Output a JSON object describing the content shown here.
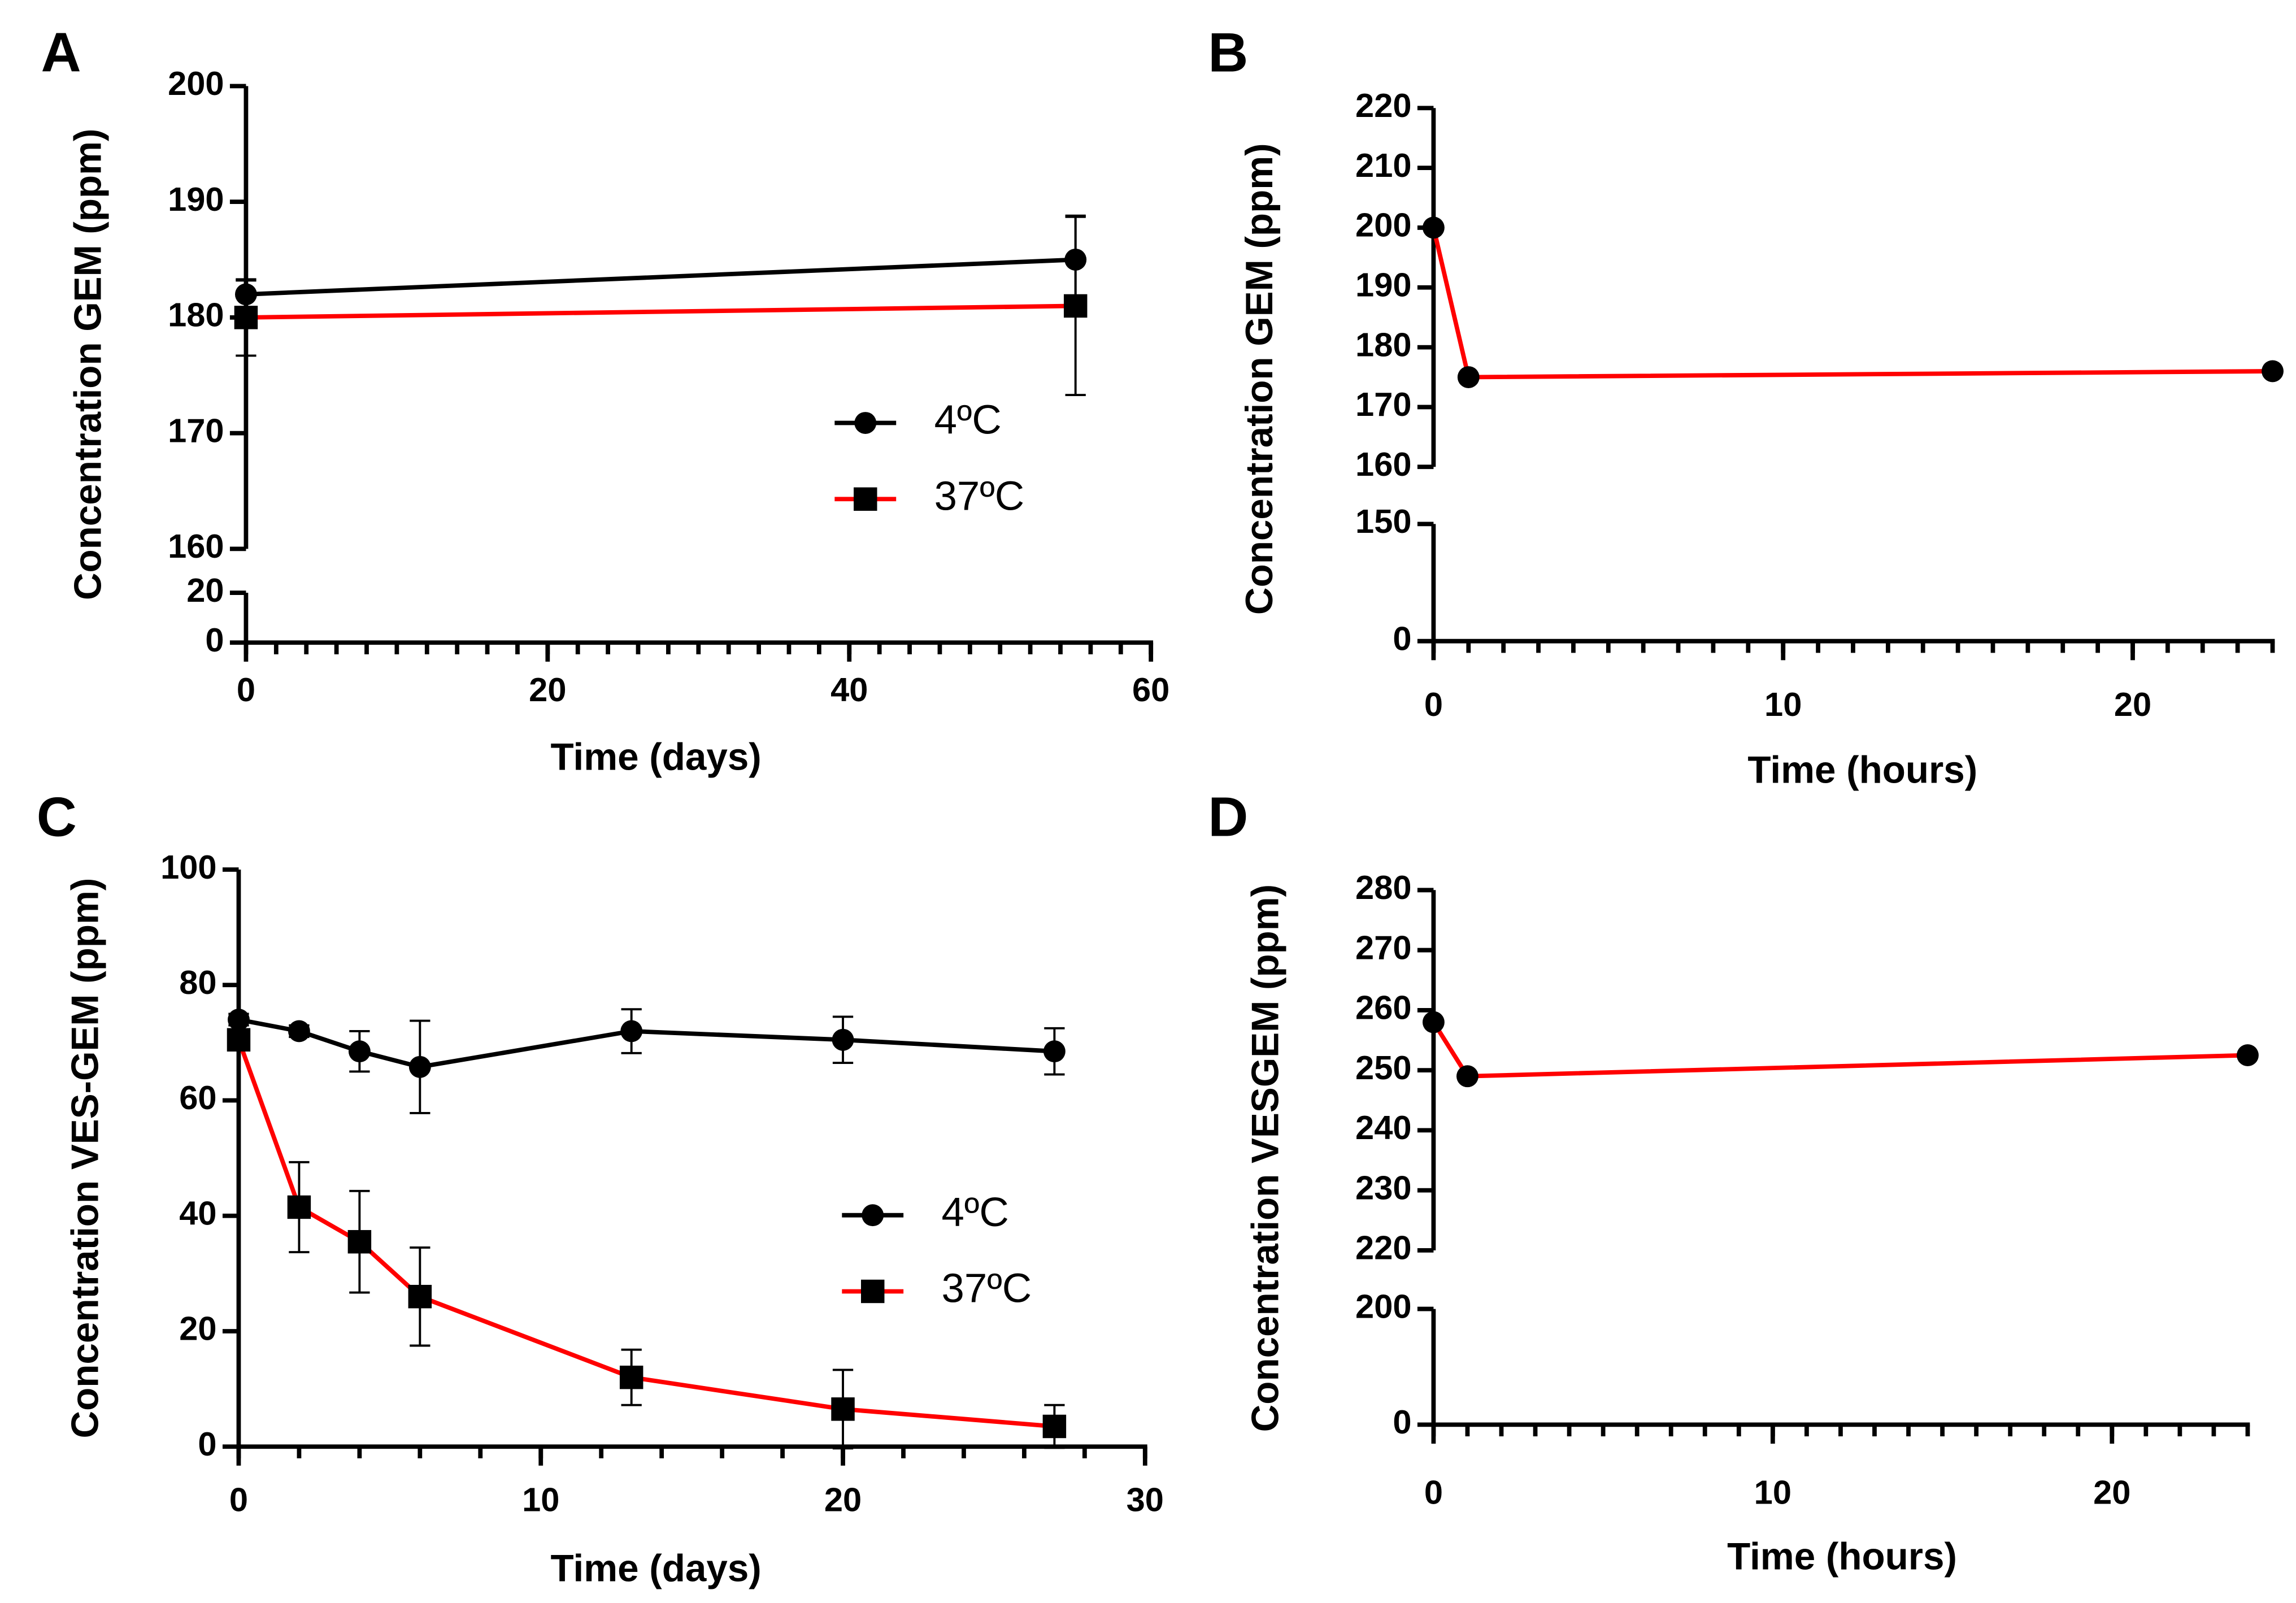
{
  "chart_data": [
    {
      "type": "line",
      "label": "A",
      "xlabel": "Time (days)",
      "ylabel": "Concentration GEM (ppm)",
      "x": [
        0,
        55
      ],
      "xlim": [
        0,
        60
      ],
      "xticks": [
        0,
        20,
        40,
        60
      ],
      "x_minor_step": 2,
      "y_segments": [
        {
          "ylim": [
            160,
            200
          ],
          "yticks": [
            160,
            170,
            180,
            190,
            200
          ]
        },
        {
          "ylim": [
            0,
            20
          ],
          "yticks": [
            0,
            20
          ]
        }
      ],
      "legend": "right",
      "series": [
        {
          "name": "4ºC",
          "color": "#000000",
          "marker": "circle",
          "marker_color": "#000000",
          "values": [
            182,
            185
          ],
          "errors": [
            1.2,
            3.8
          ]
        },
        {
          "name": "37ºC",
          "color": "#ff0000",
          "marker": "square",
          "marker_color": "#000000",
          "values": [
            180,
            181
          ],
          "errors": [
            3.3,
            7.7
          ]
        }
      ]
    },
    {
      "type": "line",
      "label": "B",
      "xlabel": "Time (hours)",
      "ylabel": "Concentration GEM (ppm)",
      "x": [
        0,
        1,
        24
      ],
      "xlim": [
        0,
        24
      ],
      "xticks": [
        0,
        10,
        20
      ],
      "x_minor_step": 1,
      "y_segments": [
        {
          "ylim": [
            160,
            220
          ],
          "yticks": [
            160,
            170,
            180,
            190,
            200,
            210,
            220
          ]
        },
        {
          "ylim": [
            0,
            150
          ],
          "yticks": [
            0,
            150
          ]
        }
      ],
      "series": [
        {
          "color": "#ff0000",
          "marker": "circle",
          "marker_color": "#000000",
          "values": [
            200,
            175,
            176
          ]
        }
      ]
    },
    {
      "type": "line",
      "label": "C",
      "xlabel": "Time (days)",
      "ylabel": "Concentration VES-GEM (ppm)",
      "x": [
        0,
        2,
        4,
        6,
        13,
        20,
        27
      ],
      "xlim": [
        0,
        30
      ],
      "xticks": [
        0,
        10,
        20,
        30
      ],
      "x_minor_step": 2,
      "y_segments": [
        {
          "ylim": [
            0,
            100
          ],
          "yticks": [
            0,
            20,
            40,
            60,
            80,
            100
          ]
        }
      ],
      "legend": "right",
      "series": [
        {
          "name": "4ºC",
          "color": "#000000",
          "marker": "circle",
          "marker_color": "#000000",
          "values": [
            74,
            72,
            68.5,
            65.8,
            72,
            70.5,
            68.5
          ],
          "errors": [
            1,
            1,
            3.5,
            8,
            3.8,
            4,
            4
          ]
        },
        {
          "name": "37ºC",
          "color": "#ff0000",
          "marker": "square",
          "marker_color": "#000000",
          "values": [
            70.5,
            41.5,
            35.5,
            26,
            12,
            6.5,
            3.5
          ],
          "errors": [
            1,
            7.8,
            8.8,
            8.5,
            4.8,
            6.8,
            3.7
          ]
        }
      ]
    },
    {
      "type": "line",
      "label": "D",
      "xlabel": "Time (hours)",
      "ylabel": "Concentration VESGEM (ppm)",
      "x": [
        0,
        1,
        24
      ],
      "xlim": [
        0,
        24
      ],
      "xticks": [
        0,
        10,
        20
      ],
      "x_minor_step": 1,
      "y_segments": [
        {
          "ylim": [
            220,
            280
          ],
          "yticks": [
            220,
            230,
            240,
            250,
            260,
            270,
            280
          ]
        },
        {
          "ylim": [
            0,
            200
          ],
          "yticks": [
            0,
            200
          ]
        }
      ],
      "series": [
        {
          "color": "#ff0000",
          "marker": "circle",
          "marker_color": "#000000",
          "values": [
            258,
            249,
            252.5
          ]
        }
      ]
    }
  ]
}
